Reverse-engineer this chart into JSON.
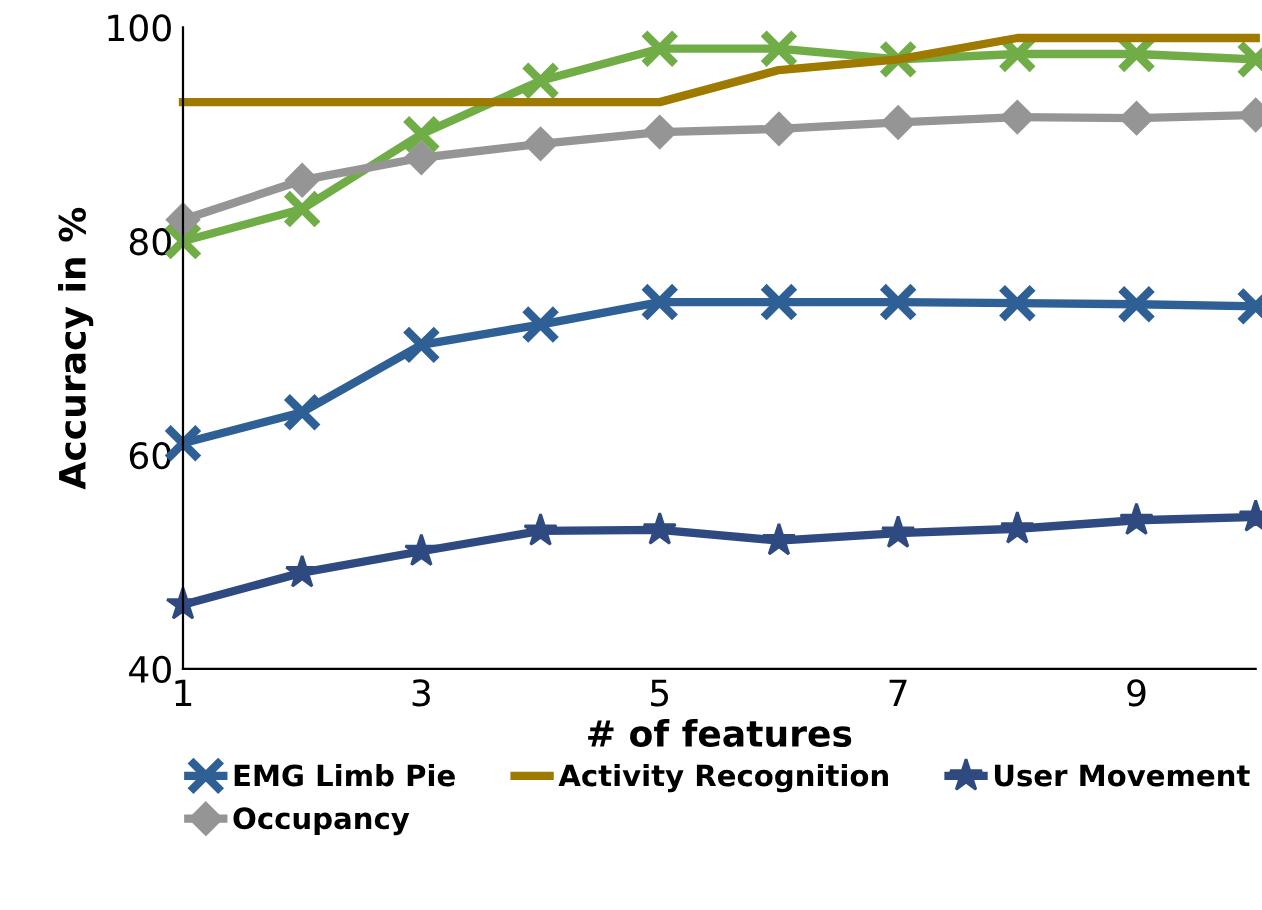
{
  "chart_data": {
    "type": "line",
    "xlabel": "# of features",
    "ylabel": "Accuracy in %",
    "x": [
      1,
      2,
      3,
      4,
      5,
      6,
      7,
      8,
      9,
      10
    ],
    "xlim": [
      1,
      10
    ],
    "xticks": [
      1,
      3,
      5,
      7,
      9
    ],
    "ylim": [
      40,
      100
    ],
    "yticks": [
      40,
      60,
      80,
      100
    ],
    "grid": false,
    "legend": "bottom",
    "line_style": "solid",
    "series": [
      {
        "color": "#70ad47",
        "marker": "cross",
        "values": [
          80,
          83,
          90,
          95,
          98,
          98,
          97,
          97.5,
          97.5,
          97
        ]
      },
      {
        "name": "EMG Limb Pie",
        "color": "#2e6096",
        "marker": "cross",
        "values": [
          61.1,
          64,
          70.3,
          72.2,
          74.3,
          74.3,
          74.3,
          74.2,
          74.1,
          73.9
        ]
      },
      {
        "name": "Activity Recognition",
        "color": "#9e7a00",
        "marker": "none",
        "values": [
          93,
          93,
          93,
          93,
          93,
          96,
          97,
          99,
          99,
          99
        ]
      },
      {
        "name": "User Movement",
        "color": "#2f4a80",
        "marker": "star",
        "values": [
          46,
          49,
          51,
          52.9,
          53,
          52,
          52.7,
          53.1,
          53.9,
          54.2
        ]
      },
      {
        "name": "Occupancy",
        "color": "#959595",
        "marker": "diamond",
        "values": [
          82,
          85.7,
          87.8,
          89.1,
          90.2,
          90.5,
          91.1,
          91.6,
          91.5,
          91.8
        ]
      }
    ]
  }
}
